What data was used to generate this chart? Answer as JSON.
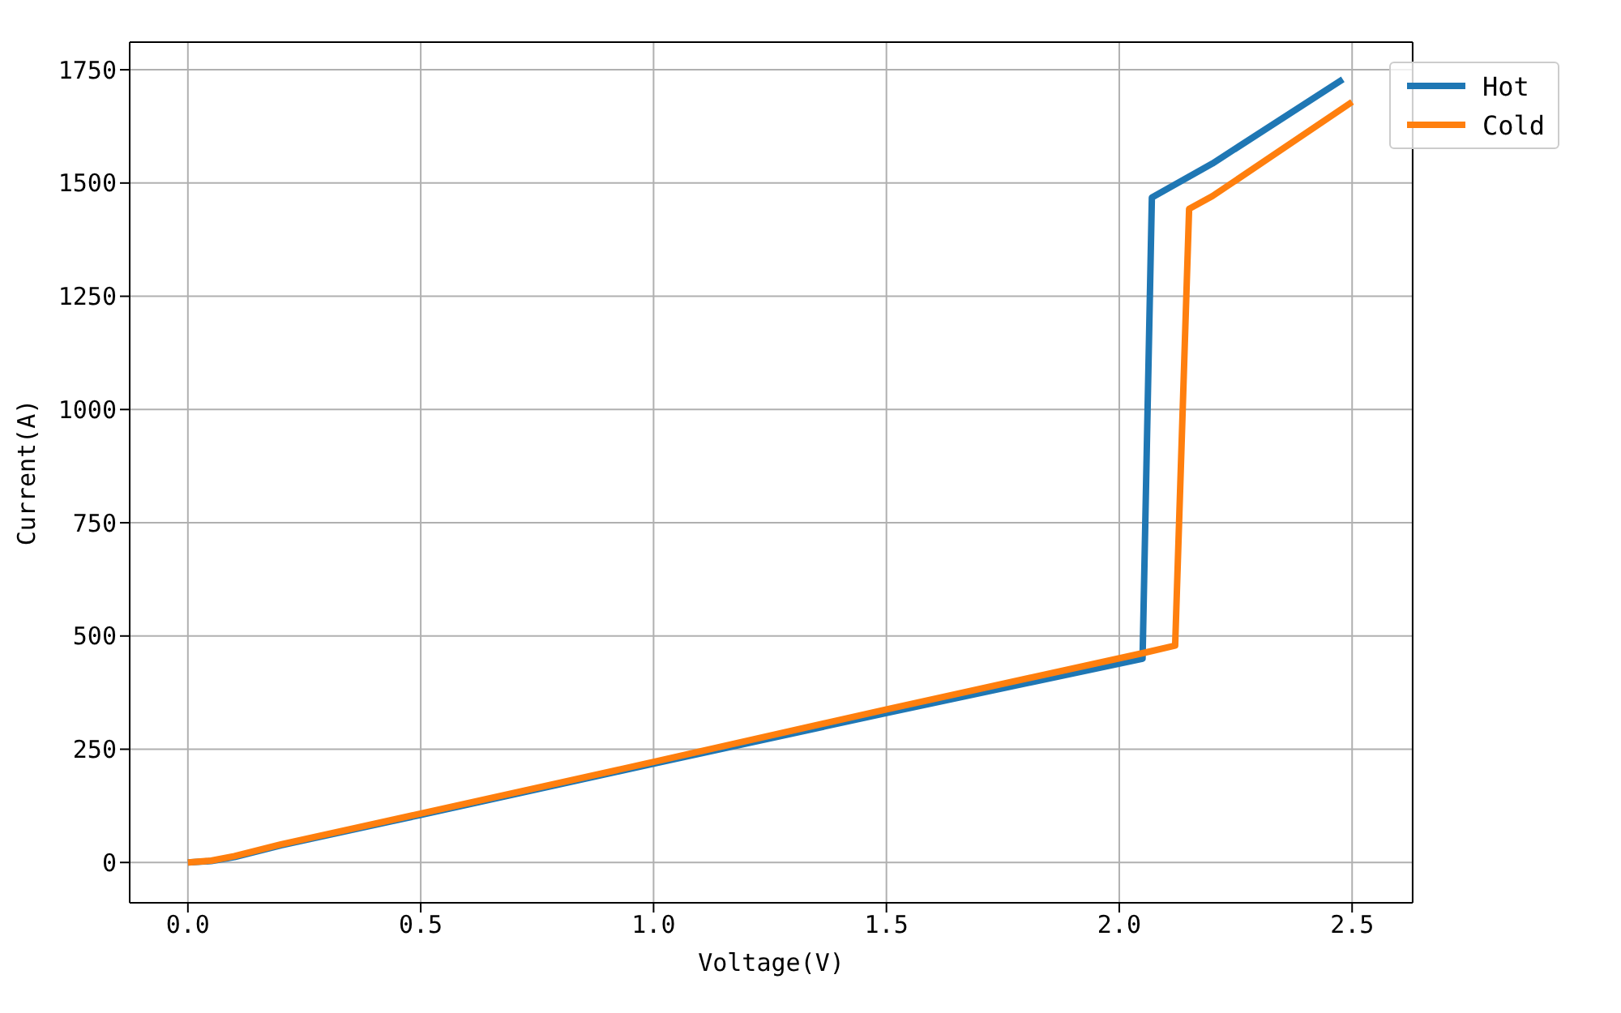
{
  "chart_data": {
    "type": "line",
    "xlabel": "Voltage(V)",
    "ylabel": "Current(A)",
    "xlim": [
      -0.125,
      2.63
    ],
    "ylim": [
      -89,
      1811
    ],
    "xticks": [
      {
        "value": 0,
        "label": "0.0"
      },
      {
        "value": 0.5,
        "label": "0.5"
      },
      {
        "value": 1,
        "label": "1.0"
      },
      {
        "value": 1.5,
        "label": "1.5"
      },
      {
        "value": 2,
        "label": "2.0"
      },
      {
        "value": 2.5,
        "label": "2.5"
      }
    ],
    "yticks": [
      0,
      250,
      500,
      750,
      1000,
      1250,
      1500,
      1750
    ],
    "grid": true,
    "legend": "top right",
    "marker": "none",
    "line_style": "solid",
    "series": [
      {
        "name": "Hot",
        "color": "#1f77b4",
        "x": [
          0,
          0.05,
          0.1,
          0.2,
          0.5,
          1.0,
          1.5,
          2.05,
          2.07,
          2.2,
          2.48
        ],
        "values": [
          0,
          3,
          12,
          38,
          105,
          218,
          330,
          450,
          1468,
          1543,
          1729
        ]
      },
      {
        "name": "Cold",
        "color": "#ff7f0e",
        "x": [
          0,
          0.05,
          0.1,
          0.2,
          0.5,
          1.0,
          1.5,
          2.05,
          2.12,
          2.15,
          2.2,
          2.5
        ],
        "values": [
          0,
          4,
          14,
          40,
          108,
          222,
          338,
          462,
          479,
          1443,
          1471,
          1679
        ]
      }
    ]
  }
}
